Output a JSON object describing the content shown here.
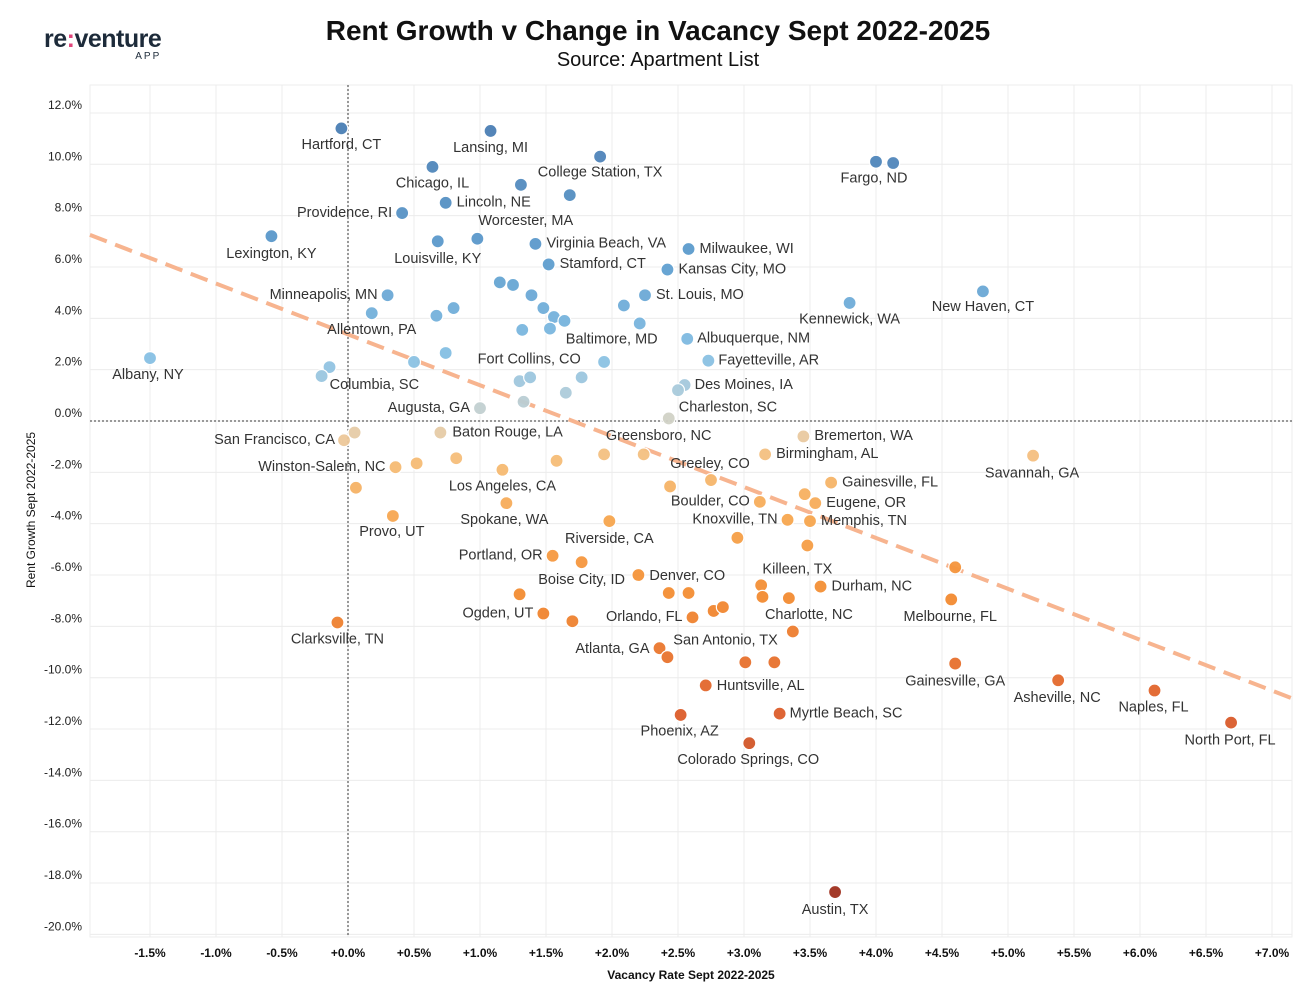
{
  "logo": {
    "brand_left": "re",
    "brand_sep": ":",
    "brand_right": "venture",
    "sub": "APP"
  },
  "title": "Rent Growth v Change in Vacancy Sept 2022-2025",
  "subtitle": "Source: Apartment List",
  "chart_data": {
    "type": "scatter",
    "title": "Rent Growth v Change in Vacancy Sept 2022-2025",
    "subtitle": "Source: Apartment List",
    "xlabel": "Vacancy Rate Sept 2022-2025",
    "ylabel": "Rent Growth Sept 2022-2025",
    "xlim": [
      -1.95,
      7.15
    ],
    "ylim": [
      -20.6,
      12.8
    ],
    "xticks": [
      -1.5,
      -1.0,
      -0.5,
      0.0,
      0.5,
      1.0,
      1.5,
      2.0,
      2.5,
      3.0,
      3.5,
      4.0,
      4.5,
      5.0,
      5.5,
      6.0,
      6.5,
      7.0
    ],
    "xtick_labels": [
      "-1.5%",
      "-1.0%",
      "-0.5%",
      "+0.0%",
      "+0.5%",
      "+1.0%",
      "+1.5%",
      "+2.0%",
      "+2.5%",
      "+3.0%",
      "+3.5%",
      "+4.0%",
      "+4.5%",
      "+5.0%",
      "+5.5%",
      "+6.0%",
      "+6.5%",
      "+7.0%"
    ],
    "yticks": [
      12,
      10,
      8,
      6,
      4,
      2,
      0,
      -2,
      -4,
      -6,
      -8,
      -10,
      -12,
      -14,
      -16,
      -18,
      -20
    ],
    "ytick_labels": [
      "12.0%",
      "10.0%",
      "8.0%",
      "6.0%",
      "4.0%",
      "2.0%",
      "0.0%",
      "-2.0%",
      "-4.0%",
      "-6.0%",
      "-8.0%",
      "-10.0%",
      "-12.0%",
      "-14.0%",
      "-16.0%",
      "-18.0%",
      "-20.0%"
    ],
    "grid": true,
    "trendline": {
      "x": [
        -1.955,
        7.15
      ],
      "y": [
        7.25,
        -10.8
      ],
      "color": "#f7b48f"
    },
    "color_scale": [
      {
        "y": 11.5,
        "color": "#4a7db3"
      },
      {
        "y": 6,
        "color": "#5f9fd0"
      },
      {
        "y": 2.5,
        "color": "#86c0e4"
      },
      {
        "y": 1.2,
        "color": "#a9cadb"
      },
      {
        "y": 0.2,
        "color": "#cdd3cc"
      },
      {
        "y": -0.5,
        "color": "#e8caa4"
      },
      {
        "y": -1.5,
        "color": "#f6bd78"
      },
      {
        "y": -4,
        "color": "#f7a44c"
      },
      {
        "y": -7,
        "color": "#f28a30"
      },
      {
        "y": -11,
        "color": "#e0602b"
      },
      {
        "y": -18.5,
        "color": "#9e2e1d"
      }
    ],
    "points": [
      {
        "x": -0.05,
        "y": 11.4,
        "label": "Hartford, CT"
      },
      {
        "x": 1.08,
        "y": 11.3,
        "label": "Lansing, MI"
      },
      {
        "x": 1.91,
        "y": 10.3,
        "label": "College Station, TX"
      },
      {
        "x": 0.64,
        "y": 9.9,
        "label": "Chicago, IL"
      },
      {
        "x": 1.31,
        "y": 9.2,
        "label": ""
      },
      {
        "x": 1.68,
        "y": 8.8,
        "label": "Worcester, MA"
      },
      {
        "x": 0.74,
        "y": 8.5,
        "label": "Lincoln, NE"
      },
      {
        "x": 0.41,
        "y": 8.1,
        "label": "Providence, RI"
      },
      {
        "x": 4.0,
        "y": 10.1,
        "label": "Fargo, ND"
      },
      {
        "x": 4.13,
        "y": 10.05,
        "label": ""
      },
      {
        "x": -0.58,
        "y": 7.2,
        "label": "Lexington, KY"
      },
      {
        "x": 0.68,
        "y": 7.0,
        "label": "Louisville, KY"
      },
      {
        "x": 0.98,
        "y": 7.1,
        "label": ""
      },
      {
        "x": 1.42,
        "y": 6.9,
        "label": "Virginia Beach, VA"
      },
      {
        "x": 2.58,
        "y": 6.7,
        "label": "Milwaukee, WI"
      },
      {
        "x": 1.52,
        "y": 6.1,
        "label": "Stamford, CT"
      },
      {
        "x": 2.42,
        "y": 5.9,
        "label": "Kansas City, MO"
      },
      {
        "x": 1.15,
        "y": 5.4,
        "label": ""
      },
      {
        "x": 1.25,
        "y": 5.3,
        "label": ""
      },
      {
        "x": 0.3,
        "y": 4.9,
        "label": "Minneapolis, MN"
      },
      {
        "x": 1.39,
        "y": 4.9,
        "label": ""
      },
      {
        "x": 2.25,
        "y": 4.9,
        "label": "St. Louis, MO"
      },
      {
        "x": 2.09,
        "y": 4.5,
        "label": ""
      },
      {
        "x": 1.48,
        "y": 4.4,
        "label": ""
      },
      {
        "x": 0.18,
        "y": 4.2,
        "label": "Allentown, PA"
      },
      {
        "x": 0.67,
        "y": 4.1,
        "label": ""
      },
      {
        "x": 0.8,
        "y": 4.4,
        "label": ""
      },
      {
        "x": 1.56,
        "y": 4.05,
        "label": ""
      },
      {
        "x": 1.64,
        "y": 3.9,
        "label": ""
      },
      {
        "x": 2.21,
        "y": 3.8,
        "label": "Baltimore, MD"
      },
      {
        "x": 1.32,
        "y": 3.55,
        "label": "Fort Collins, CO"
      },
      {
        "x": 1.53,
        "y": 3.6,
        "label": ""
      },
      {
        "x": 3.8,
        "y": 4.6,
        "label": "Kennewick, WA"
      },
      {
        "x": 4.81,
        "y": 5.05,
        "label": "New Haven, CT"
      },
      {
        "x": 2.57,
        "y": 3.2,
        "label": "Albuquerque, NM"
      },
      {
        "x": 0.5,
        "y": 2.3,
        "label": ""
      },
      {
        "x": 0.74,
        "y": 2.65,
        "label": ""
      },
      {
        "x": -0.14,
        "y": 2.1,
        "label": ""
      },
      {
        "x": -0.2,
        "y": 1.75,
        "label": "Columbia, SC"
      },
      {
        "x": -1.5,
        "y": 2.45,
        "label": "Albany, NY"
      },
      {
        "x": 1.94,
        "y": 2.3,
        "label": ""
      },
      {
        "x": 2.73,
        "y": 2.35,
        "label": "Fayetteville, AR"
      },
      {
        "x": 1.3,
        "y": 1.55,
        "label": ""
      },
      {
        "x": 1.38,
        "y": 1.7,
        "label": ""
      },
      {
        "x": 1.77,
        "y": 1.7,
        "label": ""
      },
      {
        "x": 1.65,
        "y": 1.1,
        "label": ""
      },
      {
        "x": 2.55,
        "y": 1.4,
        "label": "Des Moines, IA"
      },
      {
        "x": 2.5,
        "y": 1.2,
        "label": ""
      },
      {
        "x": 1.0,
        "y": 0.5,
        "label": "Augusta, GA"
      },
      {
        "x": 1.33,
        "y": 0.75,
        "label": ""
      },
      {
        "x": 2.43,
        "y": 0.1,
        "label": "Charleston, SC"
      },
      {
        "x": -0.03,
        "y": -0.75,
        "label": "San Francisco, CA"
      },
      {
        "x": 0.05,
        "y": -0.45,
        "label": ""
      },
      {
        "x": 0.7,
        "y": -0.45,
        "label": "Baton Rouge, LA"
      },
      {
        "x": 3.45,
        "y": -0.6,
        "label": "Bremerton, WA"
      },
      {
        "x": 5.19,
        "y": -1.35,
        "label": "Savannah, GA"
      },
      {
        "x": 1.94,
        "y": -1.3,
        "label": ""
      },
      {
        "x": 2.24,
        "y": -1.3,
        "label": "Greensboro, NC"
      },
      {
        "x": 3.16,
        "y": -1.3,
        "label": "Birmingham, AL"
      },
      {
        "x": 0.36,
        "y": -1.8,
        "label": "Winston-Salem, NC"
      },
      {
        "x": 0.52,
        "y": -1.65,
        "label": ""
      },
      {
        "x": 0.82,
        "y": -1.45,
        "label": ""
      },
      {
        "x": 1.17,
        "y": -1.9,
        "label": "Los Angeles, CA"
      },
      {
        "x": 1.58,
        "y": -1.55,
        "label": ""
      },
      {
        "x": 2.75,
        "y": -2.3,
        "label": "Greeley, CO"
      },
      {
        "x": 3.66,
        "y": -2.4,
        "label": "Gainesville, FL"
      },
      {
        "x": 0.06,
        "y": -2.6,
        "label": ""
      },
      {
        "x": 2.44,
        "y": -2.55,
        "label": ""
      },
      {
        "x": 3.46,
        "y": -2.85,
        "label": ""
      },
      {
        "x": 1.2,
        "y": -3.2,
        "label": "Spokane, WA"
      },
      {
        "x": 3.12,
        "y": -3.15,
        "label": "Boulder, CO"
      },
      {
        "x": 3.54,
        "y": -3.2,
        "label": "Eugene, OR"
      },
      {
        "x": 0.34,
        "y": -3.7,
        "label": "Provo, UT"
      },
      {
        "x": 1.98,
        "y": -3.9,
        "label": "Riverside, CA"
      },
      {
        "x": 3.33,
        "y": -3.85,
        "label": "Knoxville, TN"
      },
      {
        "x": 3.5,
        "y": -3.9,
        "label": "Memphis, TN"
      },
      {
        "x": 2.95,
        "y": -4.55,
        "label": ""
      },
      {
        "x": 3.48,
        "y": -4.85,
        "label": "Killeen, TX"
      },
      {
        "x": 1.55,
        "y": -5.25,
        "label": "Portland, OR"
      },
      {
        "x": 1.77,
        "y": -5.5,
        "label": "Boise City, ID"
      },
      {
        "x": 4.6,
        "y": -5.7,
        "label": ""
      },
      {
        "x": 2.2,
        "y": -6.0,
        "label": "Denver, CO"
      },
      {
        "x": 1.3,
        "y": -6.75,
        "label": ""
      },
      {
        "x": 2.43,
        "y": -6.7,
        "label": ""
      },
      {
        "x": 2.58,
        "y": -6.7,
        "label": ""
      },
      {
        "x": 3.13,
        "y": -6.4,
        "label": ""
      },
      {
        "x": 3.58,
        "y": -6.45,
        "label": "Durham, NC"
      },
      {
        "x": 3.14,
        "y": -6.85,
        "label": ""
      },
      {
        "x": 3.34,
        "y": -6.9,
        "label": "Charlotte, NC"
      },
      {
        "x": 4.57,
        "y": -6.95,
        "label": "Melbourne, FL"
      },
      {
        "x": 1.48,
        "y": -7.5,
        "label": "Ogden, UT"
      },
      {
        "x": 1.7,
        "y": -7.8,
        "label": ""
      },
      {
        "x": 2.61,
        "y": -7.65,
        "label": "Orlando, FL"
      },
      {
        "x": 2.77,
        "y": -7.4,
        "label": ""
      },
      {
        "x": 2.84,
        "y": -7.25,
        "label": ""
      },
      {
        "x": -0.08,
        "y": -7.85,
        "label": "Clarksville, TN"
      },
      {
        "x": 3.37,
        "y": -8.2,
        "label": "San Antonio, TX"
      },
      {
        "x": 2.36,
        "y": -8.85,
        "label": "Atlanta, GA"
      },
      {
        "x": 2.42,
        "y": -9.2,
        "label": ""
      },
      {
        "x": 3.01,
        "y": -9.4,
        "label": ""
      },
      {
        "x": 3.23,
        "y": -9.4,
        "label": ""
      },
      {
        "x": 4.6,
        "y": -9.45,
        "label": "Gainesville, GA"
      },
      {
        "x": 2.71,
        "y": -10.3,
        "label": "Huntsville, AL"
      },
      {
        "x": 5.38,
        "y": -10.1,
        "label": "Asheville, NC"
      },
      {
        "x": 6.11,
        "y": -10.5,
        "label": "Naples, FL"
      },
      {
        "x": 2.52,
        "y": -11.45,
        "label": "Phoenix, AZ"
      },
      {
        "x": 3.27,
        "y": -11.4,
        "label": "Myrtle Beach, SC"
      },
      {
        "x": 6.69,
        "y": -11.75,
        "label": "North Port, FL"
      },
      {
        "x": 3.04,
        "y": -12.55,
        "label": "Colorado Springs, CO"
      },
      {
        "x": 3.69,
        "y": -18.35,
        "label": "Austin, TX"
      }
    ]
  }
}
